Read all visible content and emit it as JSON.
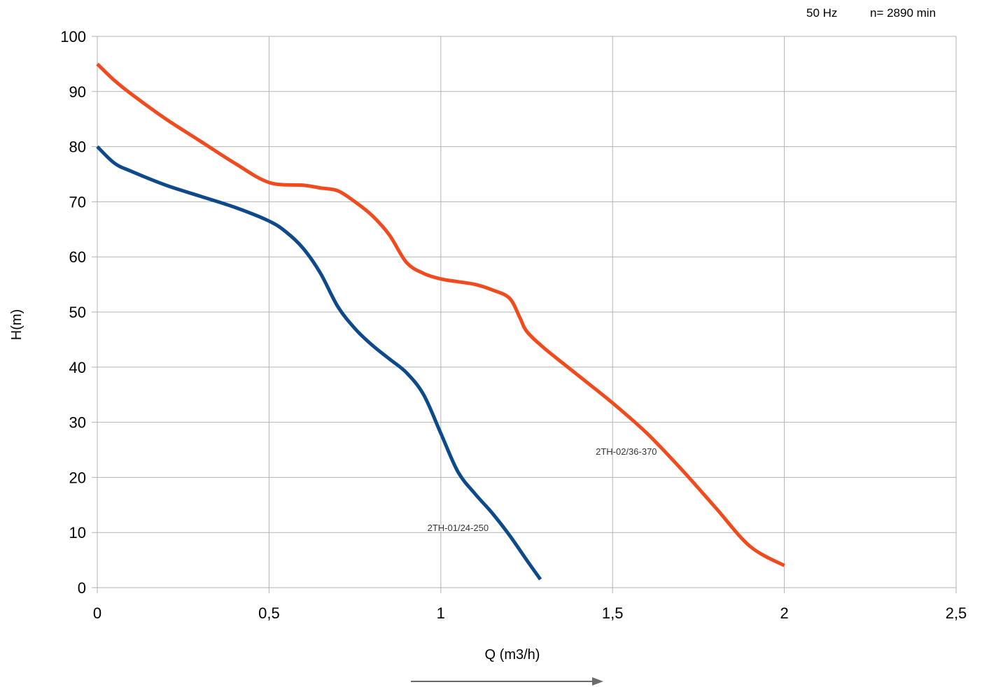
{
  "header": {
    "frequency": "50 Hz",
    "speed": "n= 2890 min"
  },
  "chart_data": {
    "type": "line",
    "title": "",
    "xlabel": "Q (m3/h)",
    "ylabel": "H(m)",
    "xlim": [
      0,
      2.5
    ],
    "ylim": [
      0,
      100
    ],
    "x_ticks": [
      0,
      0.5,
      1,
      1.5,
      2,
      2.5
    ],
    "x_tick_labels": [
      "0",
      "0,5",
      "1",
      "1,5",
      "2",
      "2,5"
    ],
    "y_ticks": [
      0,
      10,
      20,
      30,
      40,
      50,
      60,
      70,
      80,
      90,
      100
    ],
    "y_tick_labels": [
      "0",
      "10",
      "20",
      "30",
      "40",
      "50",
      "60",
      "70",
      "80",
      "90",
      "100"
    ],
    "grid": true,
    "series": [
      {
        "name": "2TH-01/24-250",
        "color": "#0e4a8a",
        "x": [
          0,
          0.05,
          0.1,
          0.2,
          0.3,
          0.4,
          0.5,
          0.55,
          0.6,
          0.65,
          0.7,
          0.75,
          0.8,
          0.85,
          0.9,
          0.95,
          1.0,
          1.05,
          1.1,
          1.15,
          1.2,
          1.25,
          1.29
        ],
        "y": [
          80,
          77,
          75.5,
          73,
          71,
          69,
          66.5,
          64.5,
          61.5,
          57,
          51,
          47,
          44,
          41.5,
          39,
          35,
          28,
          21,
          17,
          13.5,
          9.5,
          5,
          1.5
        ]
      },
      {
        "name": "2TH-02/36-370",
        "color": "#f24a1c",
        "x": [
          0,
          0.05,
          0.1,
          0.2,
          0.3,
          0.4,
          0.5,
          0.6,
          0.65,
          0.7,
          0.75,
          0.8,
          0.85,
          0.9,
          0.95,
          1.0,
          1.05,
          1.1,
          1.15,
          1.2,
          1.23,
          1.25,
          1.3,
          1.4,
          1.5,
          1.6,
          1.7,
          1.8,
          1.9,
          2.0
        ],
        "y": [
          95,
          92,
          89.5,
          85,
          81,
          77,
          73.5,
          73,
          72.5,
          72,
          70,
          67.5,
          64,
          59,
          57,
          56,
          55.5,
          55,
          54,
          52.5,
          49,
          46.5,
          43.5,
          38.5,
          33.5,
          28,
          21.5,
          14.5,
          7.5,
          4
        ]
      }
    ],
    "series_labels": [
      {
        "text": "2TH-01/24-250",
        "x": 1.05,
        "y": 10.3
      },
      {
        "text": "2TH-02/36-370",
        "x": 1.54,
        "y": 24.1
      }
    ],
    "flow_arrow": true
  }
}
